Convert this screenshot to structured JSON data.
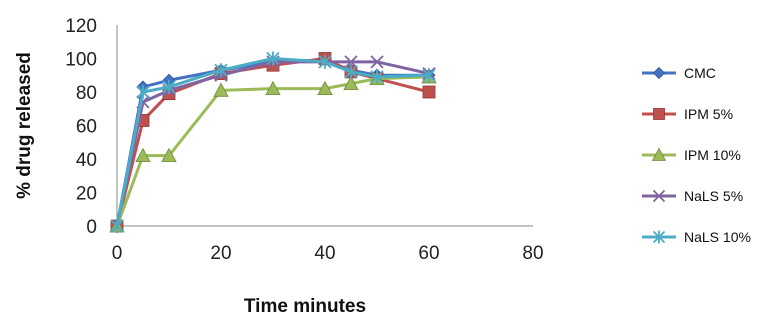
{
  "chart_data": {
    "type": "line",
    "title": "",
    "xlabel": "Time minutes",
    "ylabel": "% drug released",
    "xlim": [
      0,
      80
    ],
    "ylim": [
      0,
      120
    ],
    "x_ticks": [
      0,
      20,
      40,
      60,
      80
    ],
    "y_ticks": [
      0,
      20,
      40,
      60,
      80,
      100,
      120
    ],
    "grid": false,
    "legend": "right",
    "x": [
      0,
      5,
      10,
      20,
      30,
      40,
      45,
      50,
      60
    ],
    "series": [
      {
        "name": "CMC",
        "color": "#4472C4",
        "marker": "diamond",
        "values": [
          0,
          83,
          87,
          93,
          98,
          99,
          93,
          90,
          90
        ]
      },
      {
        "name": "IPM 5%",
        "color": "#C0504D",
        "marker": "square",
        "values": [
          0,
          63,
          79,
          91,
          96,
          100,
          92,
          88,
          80
        ]
      },
      {
        "name": "IPM 10%",
        "color": "#9BBB59",
        "marker": "triangle",
        "values": [
          0,
          42,
          42,
          81,
          82,
          82,
          85,
          88,
          89
        ]
      },
      {
        "name": "NaLS 5%",
        "color": "#8064A2",
        "marker": "x",
        "values": [
          0,
          74,
          81,
          90,
          98,
          98,
          98,
          98,
          91
        ]
      },
      {
        "name": "NaLS 10%",
        "color": "#4BACC6",
        "marker": "star",
        "values": [
          0,
          80,
          83,
          93,
          100,
          98,
          92,
          89,
          90
        ]
      }
    ]
  }
}
